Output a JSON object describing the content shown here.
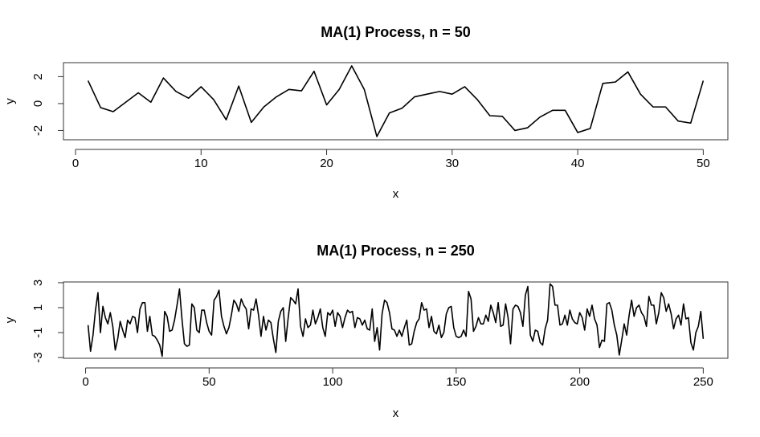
{
  "chart_data": [
    {
      "type": "line",
      "title": "MA(1) Process, n = 50",
      "xlabel": "x",
      "ylabel": "y",
      "color": "#000000",
      "x": [
        1,
        2,
        3,
        4,
        5,
        6,
        7,
        8,
        9,
        10,
        11,
        12,
        13,
        14,
        15,
        16,
        17,
        18,
        19,
        20,
        21,
        22,
        23,
        24,
        25,
        26,
        27,
        28,
        29,
        30,
        31,
        32,
        33,
        34,
        35,
        36,
        37,
        38,
        39,
        40,
        41,
        42,
        43,
        44,
        45,
        46,
        47,
        48,
        49,
        50
      ],
      "values": [
        1.7,
        -0.3,
        -0.6,
        0.1,
        0.8,
        0.1,
        1.9,
        0.9,
        0.4,
        1.25,
        0.3,
        -1.2,
        1.3,
        -1.4,
        -0.25,
        0.5,
        1.05,
        0.95,
        2.4,
        -0.1,
        1.05,
        2.8,
        1.05,
        -2.45,
        -0.7,
        -0.35,
        0.5,
        0.7,
        0.9,
        0.7,
        1.25,
        0.3,
        -0.9,
        -0.95,
        -2.0,
        -1.8,
        -1.0,
        -0.5,
        -0.5,
        -2.15,
        -1.85,
        1.5,
        1.6,
        2.35,
        0.7,
        -0.25,
        -0.25,
        -1.3,
        -1.45,
        1.7
      ],
      "xlim": [
        -0.96,
        51.96
      ],
      "ylim": [
        -2.69,
        3.04
      ],
      "xticks": [
        0,
        10,
        20,
        30,
        40,
        50
      ],
      "yticks": [
        -2,
        0,
        2
      ]
    },
    {
      "type": "line",
      "title": "MA(1) Process, n = 250",
      "xlabel": "x",
      "ylabel": "y",
      "color": "#000000",
      "x": [
        1,
        2,
        3,
        4,
        5,
        6,
        7,
        8,
        9,
        10,
        11,
        12,
        13,
        14,
        15,
        16,
        17,
        18,
        19,
        20,
        21,
        22,
        23,
        24,
        25,
        26,
        27,
        28,
        29,
        30,
        31,
        32,
        33,
        34,
        35,
        36,
        37,
        38,
        39,
        40,
        41,
        42,
        43,
        44,
        45,
        46,
        47,
        48,
        49,
        50,
        51,
        52,
        53,
        54,
        55,
        56,
        57,
        58,
        59,
        60,
        61,
        62,
        63,
        64,
        65,
        66,
        67,
        68,
        69,
        70,
        71,
        72,
        73,
        74,
        75,
        76,
        77,
        78,
        79,
        80,
        81,
        82,
        83,
        84,
        85,
        86,
        87,
        88,
        89,
        90,
        91,
        92,
        93,
        94,
        95,
        96,
        97,
        98,
        99,
        100,
        101,
        102,
        103,
        104,
        105,
        106,
        107,
        108,
        109,
        110,
        111,
        112,
        113,
        114,
        115,
        116,
        117,
        118,
        119,
        120,
        121,
        122,
        123,
        124,
        125,
        126,
        127,
        128,
        129,
        130,
        131,
        132,
        133,
        134,
        135,
        136,
        137,
        138,
        139,
        140,
        141,
        142,
        143,
        144,
        145,
        146,
        147,
        148,
        149,
        150,
        151,
        152,
        153,
        154,
        155,
        156,
        157,
        158,
        159,
        160,
        161,
        162,
        163,
        164,
        165,
        166,
        167,
        168,
        169,
        170,
        171,
        172,
        173,
        174,
        175,
        176,
        177,
        178,
        179,
        180,
        181,
        182,
        183,
        184,
        185,
        186,
        187,
        188,
        189,
        190,
        191,
        192,
        193,
        194,
        195,
        196,
        197,
        198,
        199,
        200,
        201,
        202,
        203,
        204,
        205,
        206,
        207,
        208,
        209,
        210,
        211,
        212,
        213,
        214,
        215,
        216,
        217,
        218,
        219,
        220,
        221,
        222,
        223,
        224,
        225,
        226,
        227,
        228,
        229,
        230,
        231,
        232,
        233,
        234,
        235,
        236,
        237,
        238,
        239,
        240,
        241,
        242,
        243,
        244,
        245,
        246,
        247,
        248,
        249,
        250
      ],
      "values": [
        -0.4,
        -2.5,
        -1.2,
        0.8,
        2.2,
        -1.0,
        1.1,
        0.2,
        -0.3,
        0.6,
        -0.5,
        -2.4,
        -1.5,
        -0.1,
        -0.8,
        -1.4,
        0.0,
        -0.3,
        0.3,
        0.2,
        -1.0,
        0.9,
        1.4,
        1.4,
        -0.9,
        0.3,
        -1.2,
        -1.3,
        -1.6,
        -2.0,
        -2.9,
        0.7,
        0.3,
        -0.9,
        -0.8,
        0.0,
        1.2,
        2.5,
        0.1,
        -1.9,
        -2.1,
        -2.0,
        1.3,
        1.0,
        -0.8,
        -1.0,
        0.8,
        0.8,
        -0.2,
        -0.9,
        -1.2,
        1.6,
        1.9,
        2.4,
        0.3,
        -0.5,
        -1.1,
        -0.6,
        0.4,
        1.6,
        1.3,
        0.7,
        1.7,
        1.2,
        0.9,
        -0.7,
        0.9,
        0.8,
        1.7,
        0.4,
        -1.3,
        0.3,
        -0.8,
        0.0,
        -0.2,
        -1.5,
        -2.6,
        -0.1,
        0.7,
        1.0,
        -1.7,
        0.2,
        1.8,
        1.6,
        1.3,
        2.5,
        -0.5,
        -1.3,
        0.1,
        -0.6,
        -0.4,
        0.8,
        -0.3,
        0.2,
        0.9,
        -0.6,
        -1.3,
        0.6,
        0.4,
        0.8,
        -0.5,
        0.6,
        0.3,
        -0.6,
        0.2,
        0.8,
        0.6,
        0.7,
        -0.6,
        0.2,
        0.1,
        -0.4,
        0.0,
        -0.7,
        -0.8,
        0.9,
        -1.7,
        -0.6,
        -2.4,
        0.5,
        1.6,
        1.4,
        0.6,
        -0.7,
        -0.8,
        -1.3,
        -0.8,
        -1.3,
        -0.6,
        0.0,
        -2.0,
        -1.9,
        -0.9,
        -0.2,
        0.1,
        1.4,
        0.8,
        0.9,
        -0.6,
        0.3,
        -0.9,
        -1.1,
        -0.4,
        -1.4,
        -1.0,
        0.5,
        1.0,
        1.1,
        -0.6,
        -1.3,
        -1.4,
        -1.3,
        -0.8,
        -1.3,
        2.3,
        1.7,
        -0.9,
        -0.5,
        0.2,
        -0.3,
        -0.3,
        0.4,
        -0.1,
        1.2,
        0.6,
        -0.2,
        1.4,
        -0.5,
        -0.4,
        1.3,
        0.2,
        -1.9,
        0.9,
        1.2,
        1.1,
        0.6,
        -0.5,
        2.0,
        2.7,
        -1.2,
        -1.7,
        -0.8,
        -0.9,
        -1.8,
        -2.0,
        -0.7,
        0.0,
        2.9,
        2.7,
        1.2,
        1.2,
        -0.4,
        -0.3,
        0.4,
        -0.4,
        0.8,
        0.1,
        -0.2,
        -0.3,
        0.6,
        0.2,
        -0.8,
        0.9,
        0.3,
        1.2,
        0.1,
        -0.4,
        -2.2,
        -1.6,
        -1.7,
        1.3,
        1.4,
        0.8,
        -0.4,
        -1.2,
        -2.8,
        -1.6,
        -0.3,
        -1.2,
        0.4,
        1.6,
        0.3,
        1.0,
        1.2,
        0.6,
        0.3,
        -0.5,
        1.9,
        1.2,
        1.2,
        -0.3,
        0.6,
        2.2,
        1.8,
        0.7,
        1.3,
        0.5,
        -0.7,
        0.1,
        0.4,
        -0.4,
        1.3,
        0.1,
        0.2,
        -1.8,
        -2.4,
        -1.0,
        -0.5,
        0.7,
        -1.5
      ],
      "xlim": [
        -8.96,
        259.96
      ],
      "ylim": [
        -3.06,
        3.06
      ],
      "xticks": [
        0,
        50,
        100,
        150,
        200,
        250
      ],
      "yticks": [
        -3,
        -1,
        1,
        3
      ]
    }
  ]
}
